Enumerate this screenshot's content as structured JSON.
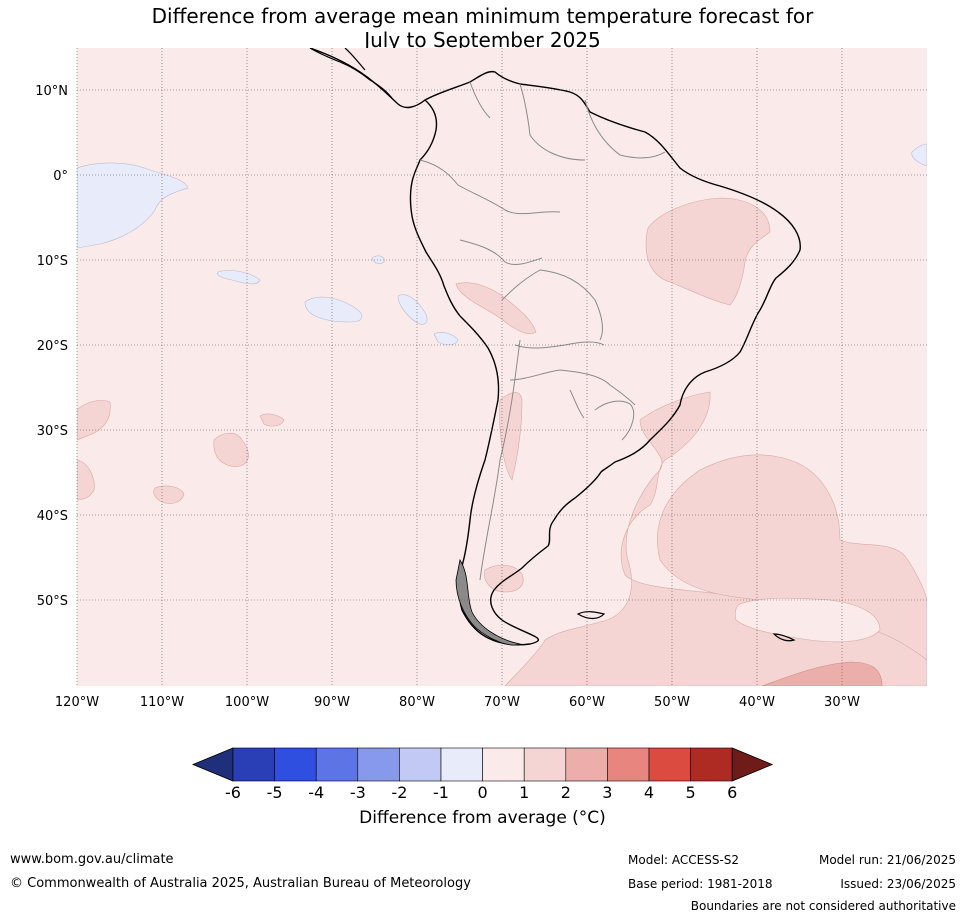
{
  "header": {
    "title_line1": "Difference from average mean minimum temperature forecast for",
    "title_line2": "July to September 2025"
  },
  "map": {
    "background_color": "#fbeaea",
    "lat_ticks": [
      "10°N",
      "0°",
      "10°S",
      "20°S",
      "30°S",
      "40°S",
      "50°S"
    ],
    "lon_ticks": [
      "120°W",
      "110°W",
      "100°W",
      "90°W",
      "80°W",
      "70°W",
      "60°W",
      "50°W",
      "40°W",
      "30°W"
    ]
  },
  "colorbar": {
    "colors": [
      "#1f2f7a",
      "#2a3fb5",
      "#2f4fe0",
      "#5d74e6",
      "#8699ec",
      "#c2c9f4",
      "#e8ebfa",
      "#fbeaea",
      "#f5d5d3",
      "#ecaeaa",
      "#e8857f",
      "#db4b3f",
      "#ad2b22",
      "#6f1b17"
    ],
    "ticks": [
      "-6",
      "-5",
      "-4",
      "-3",
      "-2",
      "-1",
      "0",
      "1",
      "2",
      "3",
      "4",
      "5",
      "6"
    ],
    "label": "Difference from average (°C)"
  },
  "footer": {
    "website": "www.bom.gov.au/climate",
    "copyright": "© Commonwealth of Australia 2025, Australian Bureau of Meteorology",
    "model": "Model: ACCESS-S2",
    "base_period": "Base period: 1981-2018",
    "model_run": "Model run: 21/06/2025",
    "issued": "Issued: 23/06/2025",
    "disclaimer": "Boundaries are not considered authoritative"
  }
}
